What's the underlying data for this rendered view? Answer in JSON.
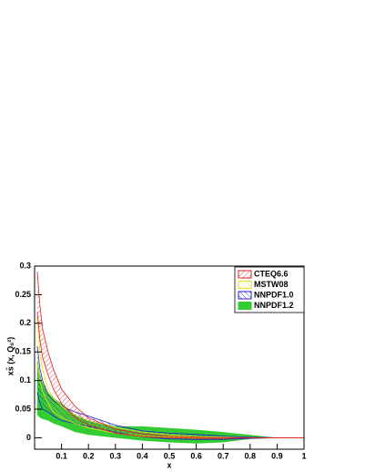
{
  "chart_data": {
    "type": "band",
    "xlabel": "x",
    "ylabel": "xs̄ (x, Q₀²)",
    "x": [
      0.01,
      0.02,
      0.03,
      0.05,
      0.07,
      0.1,
      0.15,
      0.2,
      0.3,
      0.4,
      0.5,
      0.6,
      0.7,
      0.8,
      0.9,
      1.0
    ],
    "xlim": [
      0,
      1
    ],
    "xticks": [
      0.1,
      0.2,
      0.3,
      0.4,
      0.5,
      0.6,
      0.7,
      0.8,
      0.9,
      1
    ],
    "ylim": [
      -0.02,
      0.3
    ],
    "yticks": [
      0,
      0.05,
      0.1,
      0.15,
      0.2,
      0.25,
      0.3
    ],
    "legend": "upper-right",
    "series": [
      {
        "name": "CTEQ6.6",
        "color": "#e02020",
        "style": "hatch",
        "upper": [
          0.29,
          0.23,
          0.19,
          0.15,
          0.12,
          0.085,
          0.055,
          0.035,
          0.015,
          0.007,
          0.003,
          0.001,
          0.0,
          0.0,
          0.0,
          0.0
        ],
        "lower": [
          0.22,
          0.17,
          0.14,
          0.11,
          0.085,
          0.06,
          0.035,
          0.022,
          0.008,
          0.002,
          0.0,
          -0.001,
          -0.001,
          0.0,
          0.0,
          0.0
        ]
      },
      {
        "name": "MSTW08",
        "color": "#e8e020",
        "style": "hatch",
        "upper": [
          0.21,
          0.15,
          0.12,
          0.085,
          0.07,
          0.055,
          0.04,
          0.03,
          0.018,
          0.01,
          0.005,
          0.002,
          0.001,
          0.0,
          0.0,
          0.0
        ],
        "lower": [
          0.13,
          0.1,
          0.08,
          0.06,
          0.045,
          0.035,
          0.025,
          0.017,
          0.008,
          0.003,
          0.001,
          0.0,
          0.0,
          0.0,
          0.0,
          0.0
        ]
      },
      {
        "name": "NNPDF1.0",
        "color": "#2020d0",
        "style": "hatch",
        "upper": [
          0.16,
          0.12,
          0.1,
          0.075,
          0.065,
          0.055,
          0.045,
          0.038,
          0.022,
          0.012,
          0.008,
          0.006,
          0.003,
          0.001,
          0.0,
          0.0
        ],
        "lower": [
          0.08,
          0.06,
          0.05,
          0.045,
          0.038,
          0.03,
          0.025,
          0.02,
          0.01,
          0.002,
          -0.002,
          -0.003,
          -0.003,
          -0.001,
          0.0,
          0.0
        ]
      },
      {
        "name": "NNPDF1.2",
        "color": "#33cc33",
        "style": "solid",
        "upper": [
          0.14,
          0.11,
          0.095,
          0.08,
          0.07,
          0.06,
          0.04,
          0.03,
          0.02,
          0.02,
          0.017,
          0.014,
          0.01,
          0.005,
          0.0,
          0.0
        ],
        "lower": [
          0.04,
          0.035,
          0.033,
          0.03,
          0.025,
          0.02,
          0.01,
          0.005,
          0.0,
          -0.005,
          -0.008,
          -0.01,
          -0.008,
          -0.002,
          0.0,
          0.0
        ]
      }
    ]
  }
}
